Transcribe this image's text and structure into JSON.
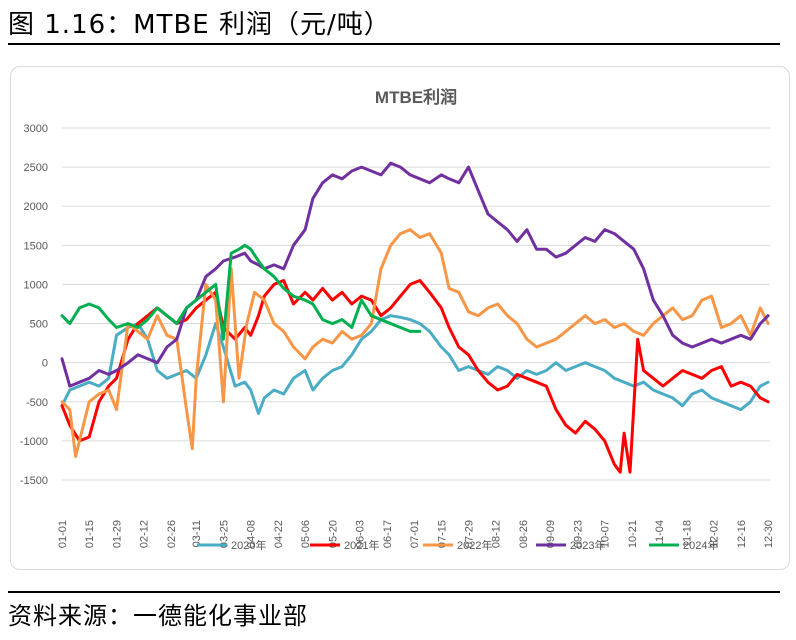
{
  "figure_title": "图 1.16：MTBE 利润（元/吨）",
  "source": "资料来源：一德能化事业部",
  "chart_data": {
    "type": "line",
    "title": "MTBE利润",
    "xlabel": "",
    "ylabel": "",
    "ylim": [
      -1500,
      3000
    ],
    "yticks": [
      3000,
      2500,
      2000,
      1500,
      1000,
      500,
      0,
      -500,
      -1000,
      -1500
    ],
    "xlim": [
      1,
      365
    ],
    "xticks": [
      {
        "label": "01-01",
        "day": 1
      },
      {
        "label": "01-15",
        "day": 15
      },
      {
        "label": "01-29",
        "day": 29
      },
      {
        "label": "02-12",
        "day": 43
      },
      {
        "label": "02-26",
        "day": 57
      },
      {
        "label": "03-11",
        "day": 70
      },
      {
        "label": "03-25",
        "day": 84
      },
      {
        "label": "04-08",
        "day": 98
      },
      {
        "label": "04-22",
        "day": 112
      },
      {
        "label": "05-06",
        "day": 126
      },
      {
        "label": "05-20",
        "day": 140
      },
      {
        "label": "06-03",
        "day": 154
      },
      {
        "label": "06-17",
        "day": 168
      },
      {
        "label": "07-01",
        "day": 182
      },
      {
        "label": "07-15",
        "day": 196
      },
      {
        "label": "07-29",
        "day": 210
      },
      {
        "label": "08-12",
        "day": 224
      },
      {
        "label": "08-26",
        "day": 238
      },
      {
        "label": "09-09",
        "day": 252
      },
      {
        "label": "09-23",
        "day": 266
      },
      {
        "label": "10-07",
        "day": 280
      },
      {
        "label": "10-21",
        "day": 294
      },
      {
        "label": "11-04",
        "day": 308
      },
      {
        "label": "11-18",
        "day": 322
      },
      {
        "label": "12-02",
        "day": 336
      },
      {
        "label": "12-16",
        "day": 350
      },
      {
        "label": "12-30",
        "day": 364
      }
    ],
    "grid": true,
    "legend": "bottom",
    "series": [
      {
        "name": "2020年",
        "color": "#4BACC6",
        "x": [
          1,
          5,
          10,
          15,
          20,
          25,
          29,
          35,
          40,
          45,
          50,
          55,
          60,
          65,
          70,
          75,
          80,
          84,
          90,
          95,
          98,
          102,
          105,
          110,
          115,
          120,
          126,
          130,
          135,
          140,
          145,
          150,
          155,
          160,
          165,
          170,
          175,
          180,
          185,
          190,
          196,
          200,
          205,
          210,
          215,
          220,
          225,
          230,
          235,
          240,
          245,
          250,
          255,
          260,
          265,
          270,
          275,
          280,
          285,
          290,
          295,
          300,
          305,
          310,
          315,
          320,
          325,
          330,
          335,
          340,
          345,
          350,
          355,
          360,
          364
        ],
        "y": [
          -550,
          -350,
          -300,
          -250,
          -300,
          -200,
          350,
          450,
          500,
          300,
          -100,
          -200,
          -150,
          -100,
          -200,
          100,
          500,
          200,
          -300,
          -250,
          -350,
          -650,
          -450,
          -350,
          -400,
          -200,
          -100,
          -350,
          -200,
          -100,
          -50,
          100,
          300,
          400,
          550,
          600,
          580,
          550,
          500,
          400,
          200,
          100,
          -100,
          -50,
          -100,
          -150,
          -50,
          -100,
          -200,
          -100,
          -150,
          -100,
          0,
          -100,
          -50,
          0,
          -50,
          -100,
          -200,
          -250,
          -300,
          -250,
          -350,
          -400,
          -450,
          -550,
          -400,
          -350,
          -450,
          -500,
          -550,
          -600,
          -500,
          -300,
          -250
        ]
      },
      {
        "name": "2021年",
        "color": "#FF0000",
        "x": [
          1,
          5,
          10,
          15,
          20,
          25,
          29,
          35,
          40,
          45,
          50,
          55,
          60,
          65,
          70,
          75,
          80,
          84,
          90,
          95,
          98,
          102,
          105,
          110,
          115,
          120,
          126,
          130,
          135,
          140,
          145,
          150,
          155,
          160,
          165,
          170,
          175,
          180,
          185,
          190,
          196,
          200,
          205,
          210,
          215,
          220,
          225,
          230,
          235,
          240,
          245,
          250,
          255,
          260,
          265,
          270,
          275,
          280,
          285,
          288,
          290,
          293,
          297,
          300,
          305,
          310,
          315,
          320,
          325,
          330,
          335,
          340,
          345,
          350,
          355,
          360,
          364
        ],
        "y": [
          -550,
          -800,
          -1000,
          -950,
          -500,
          -300,
          -200,
          300,
          500,
          600,
          700,
          600,
          500,
          550,
          700,
          800,
          900,
          450,
          300,
          450,
          350,
          600,
          850,
          1000,
          1050,
          750,
          900,
          800,
          950,
          800,
          900,
          750,
          850,
          800,
          600,
          700,
          850,
          1000,
          1050,
          900,
          700,
          450,
          200,
          100,
          -100,
          -250,
          -350,
          -300,
          -150,
          -200,
          -250,
          -300,
          -600,
          -800,
          -900,
          -750,
          -850,
          -1000,
          -1300,
          -1400,
          -900,
          -1400,
          300,
          -100,
          -200,
          -300,
          -200,
          -100,
          -150,
          -200,
          -100,
          -50,
          -300,
          -250,
          -300,
          -450,
          -500
        ]
      },
      {
        "name": "2022年",
        "color": "#F79646",
        "x": [
          1,
          5,
          8,
          12,
          15,
          20,
          25,
          29,
          35,
          40,
          45,
          50,
          55,
          60,
          65,
          68,
          70,
          75,
          80,
          84,
          88,
          92,
          96,
          100,
          105,
          110,
          115,
          120,
          126,
          130,
          135,
          140,
          145,
          150,
          155,
          160,
          165,
          170,
          175,
          180,
          185,
          190,
          196,
          200,
          205,
          210,
          215,
          220,
          225,
          230,
          235,
          240,
          245,
          250,
          255,
          260,
          265,
          270,
          275,
          280,
          285,
          290,
          295,
          300,
          305,
          310,
          315,
          320,
          325,
          330,
          335,
          340,
          345,
          350,
          355,
          360,
          364
        ],
        "y": [
          -500,
          -600,
          -1200,
          -800,
          -500,
          -400,
          -350,
          -600,
          500,
          400,
          300,
          600,
          350,
          300,
          -600,
          -1100,
          -200,
          1000,
          800,
          -500,
          1200,
          -200,
          500,
          900,
          800,
          500,
          400,
          200,
          50,
          200,
          300,
          250,
          400,
          300,
          350,
          500,
          1200,
          1500,
          1650,
          1700,
          1600,
          1650,
          1400,
          950,
          900,
          650,
          600,
          700,
          750,
          600,
          500,
          300,
          200,
          250,
          300,
          400,
          500,
          600,
          500,
          550,
          450,
          500,
          400,
          350,
          500,
          600,
          700,
          550,
          600,
          800,
          850,
          450,
          500,
          600,
          350,
          700,
          500
        ]
      },
      {
        "name": "2023年",
        "color": "#7030A0",
        "x": [
          1,
          5,
          10,
          15,
          20,
          25,
          29,
          35,
          40,
          45,
          50,
          55,
          60,
          65,
          70,
          75,
          80,
          84,
          90,
          95,
          98,
          102,
          105,
          110,
          115,
          120,
          126,
          130,
          135,
          140,
          145,
          150,
          155,
          160,
          165,
          170,
          175,
          180,
          185,
          190,
          196,
          200,
          205,
          210,
          215,
          220,
          225,
          230,
          235,
          240,
          245,
          250,
          255,
          260,
          265,
          270,
          275,
          280,
          285,
          290,
          295,
          300,
          305,
          310,
          315,
          320,
          325,
          330,
          335,
          340,
          345,
          350,
          355,
          360,
          364
        ],
        "y": [
          50,
          -300,
          -250,
          -200,
          -100,
          -150,
          -100,
          0,
          100,
          50,
          0,
          200,
          300,
          700,
          800,
          1100,
          1200,
          1300,
          1350,
          1400,
          1300,
          1250,
          1200,
          1250,
          1200,
          1500,
          1700,
          2100,
          2300,
          2400,
          2350,
          2450,
          2500,
          2450,
          2400,
          2550,
          2500,
          2400,
          2350,
          2300,
          2400,
          2350,
          2300,
          2500,
          2200,
          1900,
          1800,
          1700,
          1550,
          1700,
          1450,
          1450,
          1350,
          1400,
          1500,
          1600,
          1550,
          1700,
          1650,
          1550,
          1450,
          1200,
          800,
          600,
          350,
          250,
          200,
          250,
          300,
          250,
          300,
          350,
          300,
          500,
          600
        ]
      },
      {
        "name": "2024年",
        "color": "#00B050",
        "x": [
          1,
          5,
          10,
          15,
          20,
          25,
          29,
          35,
          40,
          45,
          50,
          55,
          60,
          65,
          70,
          75,
          80,
          84,
          88,
          92,
          95,
          98,
          102,
          105,
          110,
          115,
          120,
          126,
          130,
          135,
          140,
          145,
          150,
          155,
          160,
          165,
          170,
          175,
          180,
          185
        ],
        "y": [
          600,
          500,
          700,
          750,
          700,
          550,
          450,
          500,
          450,
          550,
          700,
          600,
          500,
          700,
          800,
          900,
          1000,
          300,
          1400,
          1450,
          1500,
          1450,
          1300,
          1200,
          1100,
          950,
          850,
          800,
          750,
          550,
          500,
          550,
          450,
          800,
          600,
          550,
          500,
          450,
          400,
          400
        ]
      }
    ]
  }
}
